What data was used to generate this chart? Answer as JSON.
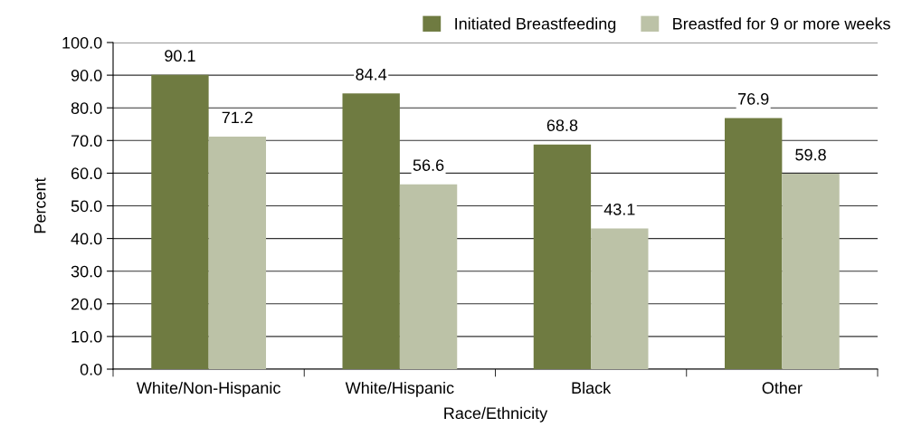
{
  "chart_data": {
    "type": "bar",
    "xlabel": "Race/Ethnicity",
    "ylabel": "Percent",
    "categories": [
      "White/Non-Hispanic",
      "White/Hispanic",
      "Black",
      "Other"
    ],
    "series": [
      {
        "name": "Initiated Breastfeeding",
        "color": "#6f7b41",
        "values": [
          90.1,
          84.4,
          68.8,
          76.9
        ]
      },
      {
        "name": "Breastfed for 9 or more weeks",
        "color": "#bcc2a7",
        "values": [
          71.2,
          56.6,
          43.1,
          59.8
        ]
      }
    ],
    "ylim": [
      0,
      100
    ],
    "yticks": [
      {
        "value": 0,
        "label": "0.0"
      },
      {
        "value": 10,
        "label": "10.0"
      },
      {
        "value": 20,
        "label": "20.0"
      },
      {
        "value": 30,
        "label": "30.0"
      },
      {
        "value": 40,
        "label": "40.0"
      },
      {
        "value": 50,
        "label": "50.0"
      },
      {
        "value": 60,
        "label": "60.0"
      },
      {
        "value": 70,
        "label": "70.0"
      },
      {
        "value": 80,
        "label": "80.0"
      },
      {
        "value": 90,
        "label": "90.0"
      },
      {
        "value": 100,
        "label": "100.0"
      }
    ],
    "grid": "y",
    "legend": "top right",
    "data_labels": true
  }
}
